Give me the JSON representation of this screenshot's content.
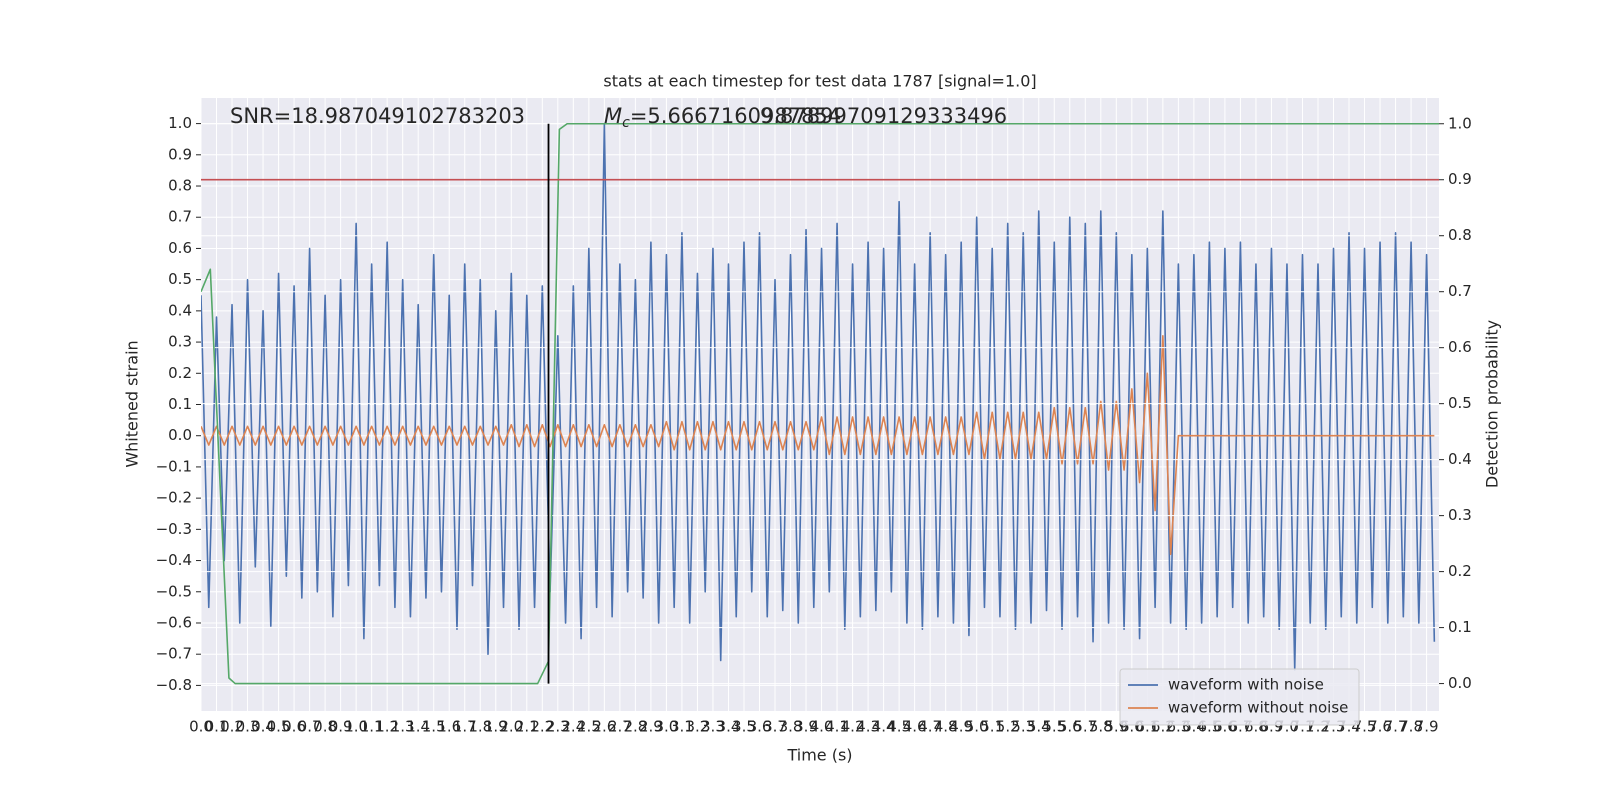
{
  "chart_data": {
    "type": "line",
    "title": "stats at each timestep for test data 1787 [signal=1.0]",
    "x_label": "Time (s)",
    "y_label": "Whitened strain",
    "y2_label": "Detection probability",
    "snr_text": "SNR=18.987049102783203",
    "mc_text": {
      "symbol": "M",
      "subscript": "c",
      "value": "=5.6667160987854"
    },
    "extra_text": "9.87899709129333496",
    "grid": true,
    "legend": "lower right",
    "background": "#eaeaf2",
    "xlim": [
      0,
      7.98
    ],
    "ylim": [
      -0.882,
      1.082
    ],
    "y2lim": [
      -0.049,
      1.046
    ],
    "xticks": [
      {
        "value": 0,
        "label": "0.0"
      },
      0.1,
      0.2,
      0.3,
      0.4,
      0.5,
      0.6,
      0.7,
      0.8,
      0.9,
      {
        "value": 1,
        "label": "1.0"
      },
      1.1,
      1.2,
      1.3,
      1.4,
      1.5,
      1.6,
      1.7,
      1.8,
      1.9,
      {
        "value": 2,
        "label": "2.0"
      },
      2.1,
      2.2,
      2.3,
      2.4,
      2.5,
      2.6,
      2.7,
      2.8,
      2.9,
      {
        "value": 3,
        "label": "3.0"
      },
      3.1,
      3.2,
      3.3,
      3.4,
      3.5,
      3.6,
      3.7,
      3.8,
      3.9,
      {
        "value": 4,
        "label": "4.0"
      },
      4.1,
      4.2,
      4.3,
      4.4,
      4.5,
      4.6,
      4.7,
      4.8,
      4.9,
      {
        "value": 5,
        "label": "5.0"
      },
      5.1,
      5.2,
      5.3,
      5.4,
      5.5,
      5.6,
      5.7,
      5.8,
      5.9,
      {
        "value": 6,
        "label": "6.0"
      },
      6.1,
      6.2,
      6.3,
      6.4,
      6.5,
      6.6,
      6.7,
      6.8,
      6.9,
      {
        "value": 7,
        "label": "7.0"
      },
      7.1,
      7.2,
      7.3,
      7.4,
      7.5,
      7.6,
      7.7,
      7.8,
      7.9
    ],
    "yticks": [
      {
        "value": -0.8,
        "label": "−0.8"
      },
      {
        "value": -0.7,
        "label": "−0.7"
      },
      {
        "value": -0.6,
        "label": "−0.6"
      },
      {
        "value": -0.5,
        "label": "−0.5"
      },
      {
        "value": -0.4,
        "label": "−0.4"
      },
      {
        "value": -0.3,
        "label": "−0.3"
      },
      {
        "value": -0.2,
        "label": "−0.2"
      },
      {
        "value": -0.1,
        "label": "−0.1"
      },
      {
        "value": 0,
        "label": "0.0"
      },
      0.1,
      0.2,
      0.3,
      0.4,
      0.5,
      0.6,
      0.7,
      0.8,
      0.9,
      {
        "value": 1,
        "label": "1.0"
      }
    ],
    "y2ticks": [
      {
        "value": 0,
        "label": "0.0"
      },
      0.1,
      0.2,
      0.3,
      0.4,
      0.5,
      0.6,
      0.7,
      0.8,
      0.9,
      {
        "value": 1,
        "label": "1.0"
      }
    ],
    "x": [
      0,
      0.05,
      0.1,
      0.15,
      0.2,
      0.25,
      0.3,
      0.35,
      0.4,
      0.45,
      0.5,
      0.55,
      0.6,
      0.65,
      0.7,
      0.75,
      0.8,
      0.85,
      0.9,
      0.95,
      1,
      1.05,
      1.1,
      1.15,
      1.2,
      1.25,
      1.3,
      1.35,
      1.4,
      1.45,
      1.5,
      1.55,
      1.6,
      1.65,
      1.7,
      1.75,
      1.8,
      1.85,
      1.9,
      1.95,
      2,
      2.05,
      2.1,
      2.15,
      2.2,
      2.25,
      2.3,
      2.35,
      2.4,
      2.45,
      2.5,
      2.55,
      2.6,
      2.65,
      2.7,
      2.75,
      2.8,
      2.85,
      2.9,
      2.95,
      3,
      3.05,
      3.1,
      3.15,
      3.2,
      3.25,
      3.3,
      3.35,
      3.4,
      3.45,
      3.5,
      3.55,
      3.6,
      3.65,
      3.7,
      3.75,
      3.8,
      3.85,
      3.9,
      3.95,
      4,
      4.05,
      4.1,
      4.15,
      4.2,
      4.25,
      4.3,
      4.35,
      4.4,
      4.45,
      4.5,
      4.55,
      4.6,
      4.65,
      4.7,
      4.75,
      4.8,
      4.85,
      4.9,
      4.95,
      5,
      5.05,
      5.1,
      5.15,
      5.2,
      5.25,
      5.3,
      5.35,
      5.4,
      5.45,
      5.5,
      5.55,
      5.6,
      5.65,
      5.7,
      5.75,
      5.8,
      5.85,
      5.9,
      5.95,
      6,
      6.05,
      6.1,
      6.15,
      6.2,
      6.25,
      6.3,
      6.35,
      6.4,
      6.45,
      6.5,
      6.55,
      6.6,
      6.65,
      6.7,
      6.75,
      6.8,
      6.85,
      6.9,
      6.95,
      7,
      7.05,
      7.1,
      7.15,
      7.2,
      7.25,
      7.3,
      7.35,
      7.4,
      7.45,
      7.5,
      7.55,
      7.6,
      7.65,
      7.7,
      7.75,
      7.8,
      7.85,
      7.9,
      7.95
    ],
    "series": [
      {
        "name": "waveform with noise",
        "color": "#4c72b0",
        "values": [
          0.45,
          -0.55,
          0.38,
          -0.4,
          0.42,
          -0.6,
          0.5,
          -0.42,
          0.4,
          -0.61,
          0.52,
          -0.45,
          0.48,
          -0.52,
          0.6,
          -0.5,
          0.45,
          -0.58,
          0.5,
          -0.48,
          0.68,
          -0.65,
          0.55,
          -0.48,
          0.62,
          -0.55,
          0.5,
          -0.58,
          0.42,
          -0.52,
          0.58,
          -0.5,
          0.45,
          -0.62,
          0.55,
          -0.48,
          0.5,
          -0.7,
          0.4,
          -0.55,
          0.52,
          -0.62,
          0.45,
          -0.55,
          0.48,
          -0.5,
          0.32,
          -0.6,
          0.48,
          -0.65,
          0.6,
          -0.55,
          1.0,
          -0.58,
          0.55,
          -0.5,
          0.5,
          -0.52,
          0.62,
          -0.6,
          0.58,
          -0.55,
          0.65,
          -0.6,
          0.52,
          -0.5,
          0.6,
          -0.72,
          0.55,
          -0.58,
          0.62,
          -0.5,
          0.65,
          -0.58,
          0.5,
          -0.56,
          0.58,
          -0.6,
          0.66,
          -0.55,
          0.6,
          -0.5,
          0.68,
          -0.62,
          0.55,
          -0.58,
          0.62,
          -0.56,
          0.6,
          -0.5,
          0.75,
          -0.6,
          0.55,
          -0.62,
          0.65,
          -0.58,
          0.58,
          -0.6,
          0.62,
          -0.64,
          0.7,
          -0.55,
          0.6,
          -0.58,
          0.68,
          -0.62,
          0.65,
          -0.6,
          0.72,
          -0.56,
          0.62,
          -0.62,
          0.7,
          -0.58,
          0.68,
          -0.66,
          0.72,
          -0.6,
          0.65,
          -0.62,
          0.58,
          -0.65,
          0.6,
          -0.55,
          0.72,
          -0.6,
          0.55,
          -0.62,
          0.58,
          -0.6,
          0.62,
          -0.58,
          0.6,
          -0.55,
          0.62,
          -0.6,
          0.55,
          -0.58,
          0.6,
          -0.62,
          0.55,
          -0.75,
          0.58,
          -0.6,
          0.55,
          -0.62,
          0.6,
          -0.58,
          0.65,
          -0.6,
          0.6,
          -0.55,
          0.62,
          -0.6,
          0.65,
          -0.58,
          0.62,
          -0.6,
          0.58,
          -0.66
        ]
      },
      {
        "name": "waveform without noise",
        "color": "#dd8452",
        "values": [
          0.03,
          -0.03,
          0.03,
          -0.03,
          0.03,
          -0.03,
          0.03,
          -0.03,
          0.03,
          -0.03,
          0.03,
          -0.03,
          0.03,
          -0.03,
          0.03,
          -0.03,
          0.03,
          -0.03,
          0.03,
          -0.03,
          0.03,
          -0.03,
          0.03,
          -0.03,
          0.03,
          -0.03,
          0.03,
          -0.03,
          0.03,
          -0.03,
          0.03,
          -0.03,
          0.03,
          -0.03,
          0.03,
          -0.03,
          0.03,
          -0.03,
          0.03,
          -0.03,
          0.035,
          -0.035,
          0.035,
          -0.035,
          0.035,
          -0.035,
          0.035,
          -0.035,
          0.035,
          -0.035,
          0.035,
          -0.035,
          0.035,
          -0.035,
          0.035,
          -0.035,
          0.035,
          -0.035,
          0.035,
          -0.035,
          0.045,
          -0.045,
          0.045,
          -0.045,
          0.045,
          -0.045,
          0.045,
          -0.045,
          0.045,
          -0.045,
          0.045,
          -0.045,
          0.045,
          -0.045,
          0.045,
          -0.045,
          0.045,
          -0.045,
          0.045,
          -0.045,
          0.06,
          -0.06,
          0.06,
          -0.06,
          0.06,
          -0.06,
          0.06,
          -0.06,
          0.06,
          -0.06,
          0.06,
          -0.06,
          0.06,
          -0.06,
          0.06,
          -0.06,
          0.06,
          -0.06,
          0.06,
          -0.06,
          0.075,
          -0.075,
          0.075,
          -0.075,
          0.075,
          -0.075,
          0.075,
          -0.075,
          0.075,
          -0.075,
          0.09,
          -0.09,
          0.09,
          -0.09,
          0.09,
          -0.09,
          0.11,
          -0.11,
          0.11,
          -0.11,
          0.15,
          -0.15,
          0.2,
          -0.24,
          0.32,
          -0.38,
          0,
          0,
          0,
          0,
          0,
          0,
          0,
          0,
          0,
          0,
          0,
          0,
          0,
          0,
          0,
          0,
          0,
          0,
          0,
          0,
          0,
          0,
          0,
          0,
          0,
          0,
          0,
          0,
          0,
          0,
          0,
          0,
          0,
          0
        ]
      },
      {
        "color": "#55a868",
        "axis": "y2",
        "x": [
          0,
          0.06,
          0.18,
          0.22,
          2.17,
          2.24,
          2.31,
          2.36,
          7.98
        ],
        "values": [
          0.7,
          0.74,
          0.01,
          0,
          0,
          0.04,
          0.99,
          1,
          1
        ]
      }
    ],
    "hline": {
      "value": 0.9,
      "axis": "y2",
      "color": "#c44e52"
    },
    "vline": {
      "x": 2.24,
      "ymin": 0,
      "ymax": 1,
      "axis": "y2",
      "color": "#000000"
    }
  }
}
